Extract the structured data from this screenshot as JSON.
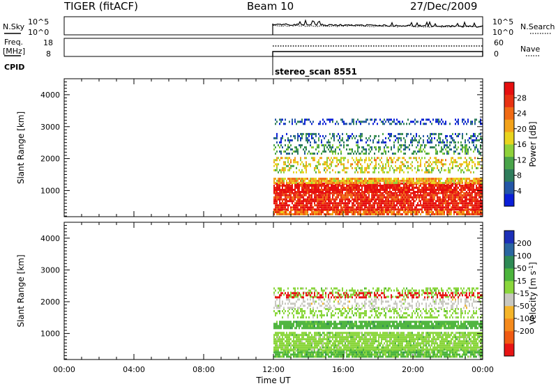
{
  "header": {
    "radar": "TIGER (fitACF)",
    "beam": "Beam 10",
    "date": "27/Dec/2009"
  },
  "top_panels": {
    "nsky_label": "N.Sky",
    "nsky_ticks": [
      "10^5",
      "10^0"
    ],
    "nsky_right_ticks": [
      "10^5",
      "10^0"
    ],
    "nsearch_label": "N.Search",
    "freq_label": "Freq.",
    "freq_unit": "[MHz]",
    "freq_ticks": [
      "18",
      "8"
    ],
    "nave_ticks": [
      "60",
      "0"
    ],
    "nave_label": "Nave",
    "cpid_label": "CPID",
    "cpid_value": "stereo_scan 8551"
  },
  "colors": {
    "power": [
      "#0a1ed8",
      "#2356a6",
      "#2f7d5c",
      "#4aa44a",
      "#8fd13a",
      "#e8d41e",
      "#f2a21a",
      "#f06a14",
      "#e83212",
      "#e60f0f"
    ],
    "velocity": [
      "#1c2fb8",
      "#2a66a0",
      "#2e8a55",
      "#4cb43c",
      "#8ad63c",
      "#c8c8c0",
      "#f5b52a",
      "#f58a1c",
      "#f05a12",
      "#e81414"
    ]
  },
  "chart_data": [
    {
      "type": "heatmap",
      "title": "Power",
      "ylabel": "Slant Range [km]",
      "xlabel": "Time UT",
      "x_ticks": [
        "00:00",
        "04:00",
        "08:00",
        "12:00",
        "16:00",
        "20:00",
        "00:00"
      ],
      "x_range_hours": [
        0,
        24
      ],
      "y_ticks": [
        "1000",
        "2000",
        "3000",
        "4000"
      ],
      "ylim": [
        180,
        4500
      ],
      "colorbar": {
        "label": "Power [dB]",
        "ticks": [
          "4",
          "8",
          "12",
          "16",
          "20",
          "24",
          "28"
        ],
        "range": [
          0,
          32
        ]
      },
      "data_start_hour": 12,
      "bands": [
        {
          "y_range": [
            250,
            420
          ],
          "value": 24
        },
        {
          "y_range": [
            420,
            700
          ],
          "value": 30
        },
        {
          "y_range": [
            700,
            950
          ],
          "value": 28
        },
        {
          "y_range": [
            950,
            1250
          ],
          "value": 30
        },
        {
          "y_range": [
            1250,
            1400
          ],
          "value": 20
        },
        {
          "y_range": [
            1550,
            1800
          ],
          "value": 16
        },
        {
          "y_range": [
            1800,
            2050
          ],
          "value": 18
        },
        {
          "y_range": [
            2150,
            2450
          ],
          "value": 10
        },
        {
          "y_range": [
            2500,
            2800
          ],
          "value": 6
        },
        {
          "y_range": [
            3100,
            3250
          ],
          "value": 4
        }
      ]
    },
    {
      "type": "heatmap",
      "title": "Velocity",
      "ylabel": "Slant Range [km]",
      "xlabel": "Time UT",
      "x_ticks": [
        "00:00",
        "04:00",
        "08:00",
        "12:00",
        "16:00",
        "20:00",
        "00:00"
      ],
      "x_range_hours": [
        0,
        24
      ],
      "y_ticks": [
        "1000",
        "2000",
        "3000",
        "4000"
      ],
      "ylim": [
        180,
        4500
      ],
      "colorbar": {
        "label": "Velocity [m s",
        "label_sup": "-1",
        "label_end": "]",
        "ticks": [
          "200",
          "100",
          "50",
          "15",
          "-15",
          "-50",
          "-100",
          "-200"
        ]
      },
      "data_start_hour": 12,
      "bands": [
        {
          "y_range": [
            250,
            500
          ],
          "value": 20
        },
        {
          "y_range": [
            500,
            1050
          ],
          "value": 0
        },
        {
          "y_range": [
            1150,
            1400
          ],
          "value": 40
        },
        {
          "y_range": [
            1500,
            1800
          ],
          "value": 0
        },
        {
          "y_range": [
            1800,
            2100
          ],
          "value": -30
        },
        {
          "y_range": [
            2150,
            2450
          ],
          "value": 0
        },
        {
          "y_range": [
            2150,
            2300
          ],
          "value": -250
        }
      ]
    }
  ]
}
